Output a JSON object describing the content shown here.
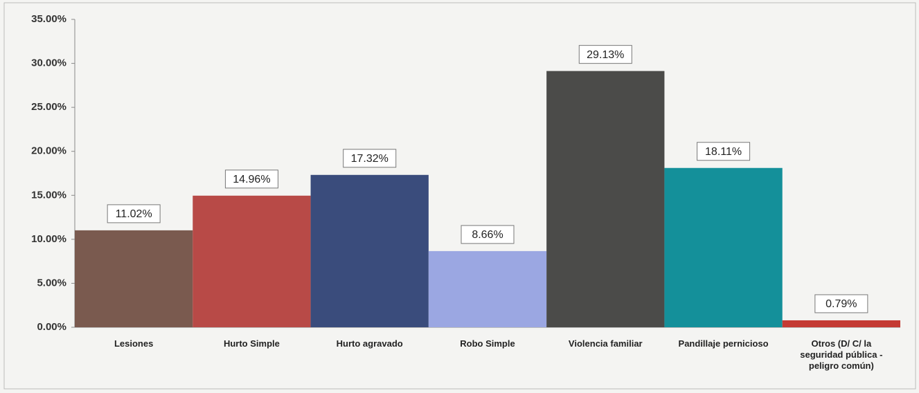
{
  "chart_data": {
    "type": "bar",
    "categories": [
      "Lesiones",
      "Hurto Simple",
      "Hurto agravado",
      "Robo Simple",
      "Violencia familiar",
      "Pandillaje pernicioso",
      "Otros (D/ C/ la seguridad pública - peligro común)"
    ],
    "values": [
      11.02,
      14.96,
      17.32,
      8.66,
      29.13,
      18.11,
      0.79
    ],
    "value_labels": [
      "11.02%",
      "14.96%",
      "17.32%",
      "8.66%",
      "29.13%",
      "18.11%",
      "0.79%"
    ],
    "colors": [
      "#7a5a4f",
      "#b84a47",
      "#3a4c7c",
      "#9ba7e2",
      "#4b4b49",
      "#14909a",
      "#c43a33"
    ],
    "ylim": [
      0,
      35
    ],
    "yticks": [
      {
        "value": 0,
        "label": "0.00%"
      },
      {
        "value": 5,
        "label": "5.00%"
      },
      {
        "value": 10,
        "label": "10.00%"
      },
      {
        "value": 15,
        "label": "15.00%"
      },
      {
        "value": 20,
        "label": "20.00%"
      },
      {
        "value": 25,
        "label": "25.00%"
      },
      {
        "value": 30,
        "label": "30.00%"
      },
      {
        "value": 35,
        "label": "35.00%"
      }
    ],
    "grid": false
  }
}
